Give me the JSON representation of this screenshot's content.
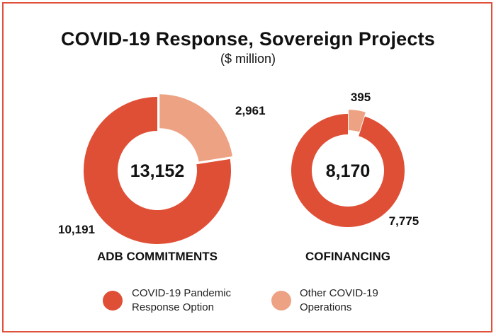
{
  "title": "COVID-19 Response, Sovereign Projects",
  "subtitle": "($ million)",
  "colors": {
    "primary": "#df4f35",
    "secondary": "#eda283",
    "frame": "#e0503a"
  },
  "chart_data": [
    {
      "type": "pie",
      "title": "ADB COMMITMENTS",
      "total_label": "13,152",
      "categories": [
        "COVID-19 Pandemic Response Option",
        "Other COVID-19 Operations"
      ],
      "values": [
        10191,
        2961
      ],
      "value_labels": [
        "10,191",
        "2,961"
      ]
    },
    {
      "type": "pie",
      "title": "COFINANCING",
      "total_label": "8,170",
      "categories": [
        "COVID-19 Pandemic Response Option",
        "Other COVID-19 Operations"
      ],
      "values": [
        7775,
        395
      ],
      "value_labels": [
        "7,775",
        "395"
      ]
    }
  ],
  "legend": [
    {
      "line1": "COVID-19 Pandemic",
      "line2": "Response Option",
      "color": "#df4f35"
    },
    {
      "line1": "Other COVID-19",
      "line2": "Operations",
      "color": "#eda283"
    }
  ]
}
